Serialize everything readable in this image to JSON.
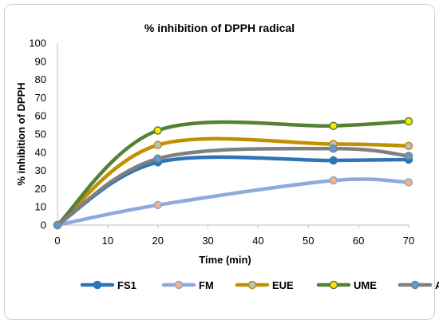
{
  "chart_data": {
    "type": "line",
    "title": "% inhibition of DPPH radical",
    "xlabel": "Time (min)",
    "ylabel": "% inhibition of DPPH",
    "xlim": [
      0,
      70
    ],
    "ylim": [
      0,
      100
    ],
    "xticks": [
      0,
      10,
      20,
      30,
      40,
      50,
      60,
      70
    ],
    "yticks": [
      0,
      10,
      20,
      30,
      40,
      50,
      60,
      70,
      80,
      90,
      100
    ],
    "grid": false,
    "legend_position": "bottom",
    "series": [
      {
        "name": "FS1",
        "x": [
          0,
          20,
          55,
          70
        ],
        "values": [
          0,
          34.5,
          35.5,
          36
        ],
        "color": "#2E75B6",
        "marker_color": "#2E75B6"
      },
      {
        "name": "FM",
        "x": [
          0,
          20,
          55,
          70
        ],
        "values": [
          0,
          11,
          24.5,
          23.5
        ],
        "color": "#8EA9DB",
        "marker_color": "#F4B183"
      },
      {
        "name": "EUE",
        "x": [
          0,
          20,
          55,
          70
        ],
        "values": [
          0,
          44,
          44.5,
          43.5
        ],
        "color": "#BF9000",
        "marker_color": "#BFBFBF"
      },
      {
        "name": "UME",
        "x": [
          0,
          20,
          55,
          70
        ],
        "values": [
          0,
          52,
          54.5,
          57
        ],
        "color": "#548235",
        "marker_color": "#FFE600"
      },
      {
        "name": "A",
        "x": [
          0,
          20,
          55,
          70
        ],
        "values": [
          0,
          36.5,
          42,
          38
        ],
        "color": "#7F7F7F",
        "marker_color": "#5B9BD5"
      }
    ]
  }
}
